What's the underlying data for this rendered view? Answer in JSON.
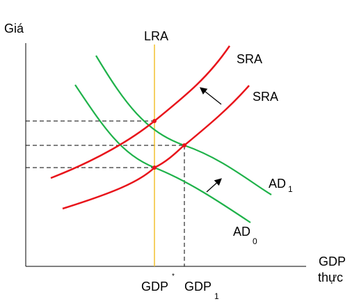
{
  "axes": {
    "y_label": "Giá",
    "x_label_line1": "GDP",
    "x_label_line2": "thực"
  },
  "curves": {
    "lra_label": "LRA",
    "sra_upper_label": "SRA",
    "sra_lower_label": "SRA",
    "ad1_label": "AD",
    "ad1_subscript": "1",
    "ad0_label": "AD",
    "ad0_subscript": "0"
  },
  "x_ticks": {
    "gdp_star_label": "GDP",
    "gdp_star_superscript": "*",
    "gdp1_label": "GDP",
    "gdp1_subscript": "1"
  },
  "colors": {
    "supply_curve": "#e8141b",
    "demand_curve": "#1fb24a",
    "long_run_line": "#f2c12e",
    "axis": "#000000",
    "guide_line": "#000000"
  }
}
